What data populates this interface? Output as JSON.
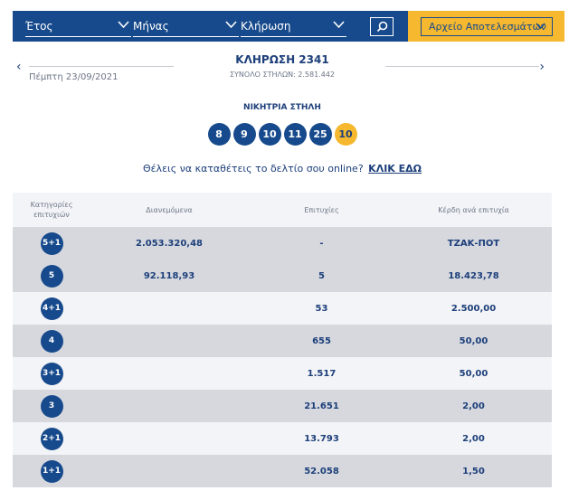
{
  "filters": {
    "year_label": "Έτος",
    "month_label": "Μήνας",
    "draw_label": "Κλήρωση",
    "archive_label": "Αρχείο Αποτελεσμάτων"
  },
  "draw": {
    "date": "Πέμπτη 23/09/2021",
    "title": "ΚΛΗΡΩΣΗ 2341",
    "total_columns": "ΣΥΝΟΛΟ ΣΤΗΛΩΝ: 2.581.442",
    "prev_arrow": "‹",
    "next_arrow": "›"
  },
  "winning": {
    "label": "ΝΙΚΗΤΡΙΑ ΣΤΗΛΗ",
    "numbers": [
      "8",
      "9",
      "10",
      "11",
      "25"
    ],
    "joker": "10"
  },
  "online": {
    "text": "Θέλεις να καταθέτεις το δελτίο σου online?",
    "link": "ΚΛΙΚ ΕΔΩ"
  },
  "table": {
    "headers": {
      "category": "Κατηγορίες επιτυχιών",
      "distributed": "Διανεμόμενα",
      "winners": "Επιτυχίες",
      "prize": "Κέρδη ανά επιτυχία"
    },
    "rows": [
      {
        "cat": "5+1",
        "distributed": "2.053.320,48",
        "winners": "-",
        "prize": "ΤΖΑΚ-ΠΟΤ"
      },
      {
        "cat": "5",
        "distributed": "92.118,93",
        "winners": "5",
        "prize": "18.423,78"
      },
      {
        "cat": "4+1",
        "distributed": "",
        "winners": "53",
        "prize": "2.500,00"
      },
      {
        "cat": "4",
        "distributed": "",
        "winners": "655",
        "prize": "50,00"
      },
      {
        "cat": "3+1",
        "distributed": "",
        "winners": "1.517",
        "prize": "50,00"
      },
      {
        "cat": "3",
        "distributed": "",
        "winners": "21.651",
        "prize": "2,00"
      },
      {
        "cat": "2+1",
        "distributed": "",
        "winners": "13.793",
        "prize": "2,00"
      },
      {
        "cat": "1+1",
        "distributed": "",
        "winners": "52.058",
        "prize": "1,50"
      }
    ]
  },
  "colors": {
    "brand_blue": "#174a8c",
    "joker_yellow": "#f5b82e",
    "row_light": "#f3f4f7",
    "row_dark": "#d6d8de"
  }
}
